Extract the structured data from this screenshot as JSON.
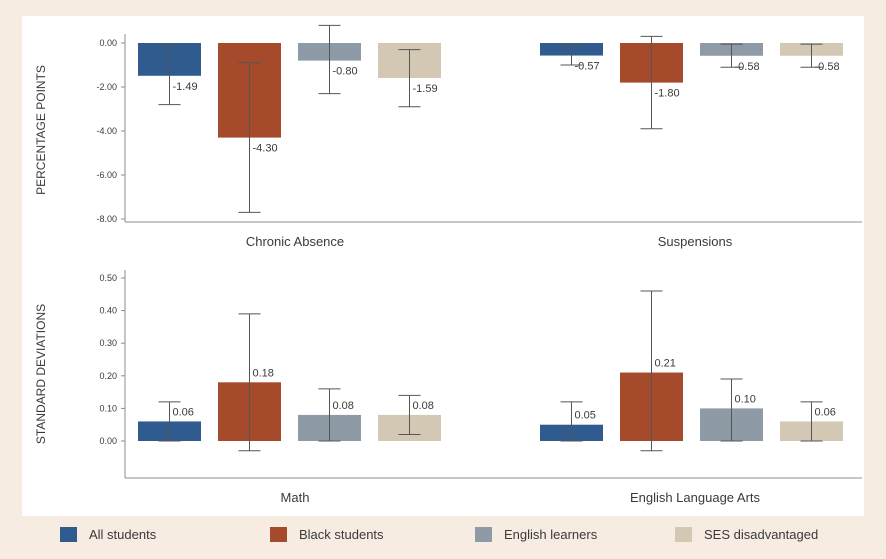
{
  "colors": {
    "background": "#f6ece2",
    "panel": "#ffffff",
    "axis": "#8c8c8c",
    "text": "#3a3a3a",
    "error_bar": "#555555"
  },
  "legend": [
    {
      "name": "All students",
      "color": "#2f5b8f"
    },
    {
      "name": "Black students",
      "color": "#a64a2c"
    },
    {
      "name": "English learners",
      "color": "#8e9aa6"
    },
    {
      "name": "SES disadvantaged",
      "color": "#d3c8b3"
    }
  ],
  "chart_data": [
    {
      "type": "bar",
      "ylabel": "PERCENTAGE POINTS",
      "ylim": [
        -8.0,
        0.0
      ],
      "yticks": [
        "0.00",
        "-2.00",
        "-4.00",
        "-6.00",
        "-8.00"
      ],
      "categories": [
        "Chronic Absence",
        "Suspensions"
      ],
      "grid": false,
      "series": [
        {
          "name": "All students",
          "values": [
            -1.49,
            -0.57
          ],
          "labels": [
            "-1.49",
            "-0.57"
          ],
          "error": [
            [
              -2.8,
              -0.1
            ],
            [
              -1.0,
              -0.1
            ]
          ]
        },
        {
          "name": "Black students",
          "values": [
            -4.3,
            -1.8
          ],
          "labels": [
            "-4.30",
            "-1.80"
          ],
          "error": [
            [
              -7.7,
              -0.9
            ],
            [
              -3.9,
              0.3
            ]
          ]
        },
        {
          "name": "English learners",
          "values": [
            -0.8,
            -0.58
          ],
          "labels": [
            "-0.80",
            "-0.58"
          ],
          "error": [
            [
              -2.3,
              0.8
            ],
            [
              -1.1,
              -0.05
            ]
          ]
        },
        {
          "name": "SES disadvantaged",
          "values": [
            -1.59,
            -0.58
          ],
          "labels": [
            "-1.59",
            "-0.58"
          ],
          "error": [
            [
              -2.9,
              -0.3
            ],
            [
              -1.1,
              -0.05
            ]
          ]
        }
      ]
    },
    {
      "type": "bar",
      "ylabel": "STANDARD DEVIATIONS",
      "ylim": [
        0.0,
        0.5
      ],
      "yticks": [
        "0.50",
        "0.40",
        "0.30",
        "0.20",
        "0.10",
        "0.00"
      ],
      "categories": [
        "Math",
        "English Language Arts"
      ],
      "grid": false,
      "series": [
        {
          "name": "All students",
          "values": [
            0.06,
            0.05
          ],
          "labels": [
            "0.06",
            "0.05"
          ],
          "error": [
            [
              0.0,
              0.12
            ],
            [
              0.0,
              0.12
            ]
          ]
        },
        {
          "name": "Black students",
          "values": [
            0.18,
            0.21
          ],
          "labels": [
            "0.18",
            "0.21"
          ],
          "error": [
            [
              -0.03,
              0.39
            ],
            [
              -0.03,
              0.46
            ]
          ]
        },
        {
          "name": "English learners",
          "values": [
            0.08,
            0.1
          ],
          "labels": [
            "0.08",
            "0.10"
          ],
          "error": [
            [
              0.0,
              0.16
            ],
            [
              0.0,
              0.19
            ]
          ]
        },
        {
          "name": "SES disadvantaged",
          "values": [
            0.08,
            0.06
          ],
          "labels": [
            "0.08",
            "0.06"
          ],
          "error": [
            [
              0.02,
              0.14
            ],
            [
              0.0,
              0.12
            ]
          ]
        }
      ]
    }
  ]
}
